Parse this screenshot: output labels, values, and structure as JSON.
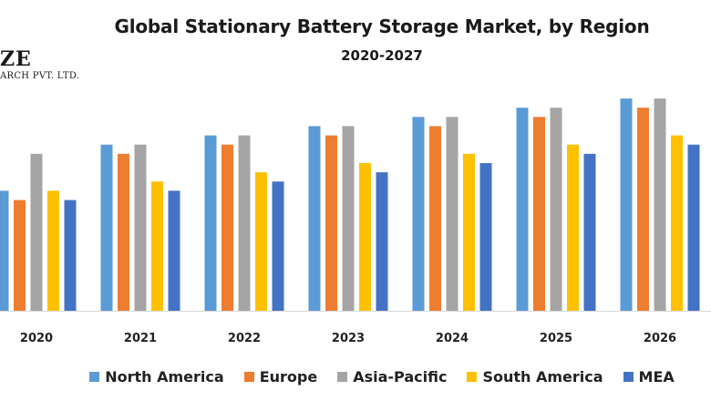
{
  "logo": {
    "main": "ZE",
    "sub": "ARCH PVT. LTD."
  },
  "chart_data": {
    "type": "bar",
    "title": "Global Stationary Battery Storage Market, by Region",
    "subtitle": "2020-2027",
    "xlabel": "",
    "ylabel": "",
    "categories": [
      "2020",
      "2021",
      "2022",
      "2023",
      "2024",
      "2025",
      "2026"
    ],
    "series": [
      {
        "name": "North America",
        "color": "#5B9BD5",
        "values": [
          13,
          18,
          19,
          20,
          21,
          22,
          23
        ]
      },
      {
        "name": "Europe",
        "color": "#ED7D31",
        "values": [
          12,
          17,
          18,
          19,
          20,
          21,
          22
        ]
      },
      {
        "name": "Asia-Pacific",
        "color": "#A5A5A5",
        "values": [
          17,
          18,
          19,
          20,
          21,
          22,
          23
        ]
      },
      {
        "name": "South America",
        "color": "#FFC000",
        "values": [
          13,
          14,
          15,
          16,
          17,
          18,
          19
        ]
      },
      {
        "name": "MEA",
        "color": "#4472C4",
        "values": [
          12,
          13,
          14,
          15,
          16,
          17,
          18
        ]
      }
    ],
    "ylim": [
      0,
      23.5
    ],
    "grid": false,
    "legend_position": "bottom"
  }
}
